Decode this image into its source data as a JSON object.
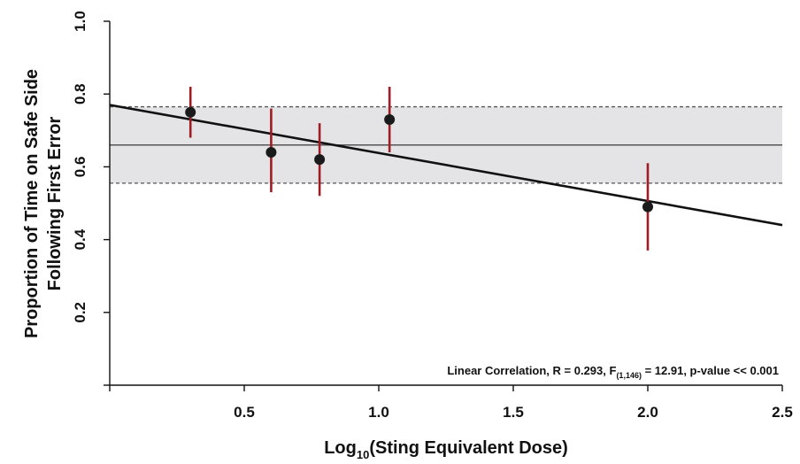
{
  "chart_data": {
    "type": "scatter",
    "ylabel_line1": "Proportion of Time on Safe Side",
    "ylabel_line2": "Following First Error",
    "xlabel": {
      "prefix": "Log",
      "subscript": "10",
      "suffix": "(Sting Equivalent Dose)"
    },
    "xlim": [
      0,
      2.5
    ],
    "ylim": [
      0.0,
      1.0
    ],
    "x_ticks": [
      0.5,
      1.0,
      1.5,
      2.0,
      2.5
    ],
    "x_tick_labels": [
      "0.5",
      "1.0",
      "1.5",
      "2.0",
      "2.5"
    ],
    "y_ticks": [
      0.2,
      0.4,
      0.6,
      0.8,
      1.0
    ],
    "y_tick_labels": [
      "0.2",
      "0.4",
      "0.6",
      "0.8",
      "1.0"
    ],
    "grid": false,
    "points": [
      {
        "x": 0.3,
        "y": 0.75,
        "err_low": 0.68,
        "err_high": 0.82
      },
      {
        "x": 0.6,
        "y": 0.64,
        "err_low": 0.53,
        "err_high": 0.76
      },
      {
        "x": 0.78,
        "y": 0.62,
        "err_low": 0.52,
        "err_high": 0.72
      },
      {
        "x": 1.04,
        "y": 0.73,
        "err_low": 0.64,
        "err_high": 0.82
      },
      {
        "x": 2.0,
        "y": 0.49,
        "err_low": 0.37,
        "err_high": 0.61
      }
    ],
    "regression_line": {
      "x_start": 0.0,
      "y_start": 0.77,
      "x_end": 2.5,
      "y_end": 0.44
    },
    "mean_line_y": 0.66,
    "band": {
      "y_low": 0.555,
      "y_high": 0.765
    },
    "annotation": {
      "text_before": "Linear Correlation, R = 0.293, F",
      "subscript": "(1,146)",
      "text_after": " = 12.91, p-value << 0.001"
    },
    "colors": {
      "point": "#1a1a1a",
      "error_bar": "#a01c24",
      "regression": "#111111",
      "mean_line": "#555555",
      "band_fill": "#e4e4e6",
      "band_border": "#555555"
    }
  }
}
